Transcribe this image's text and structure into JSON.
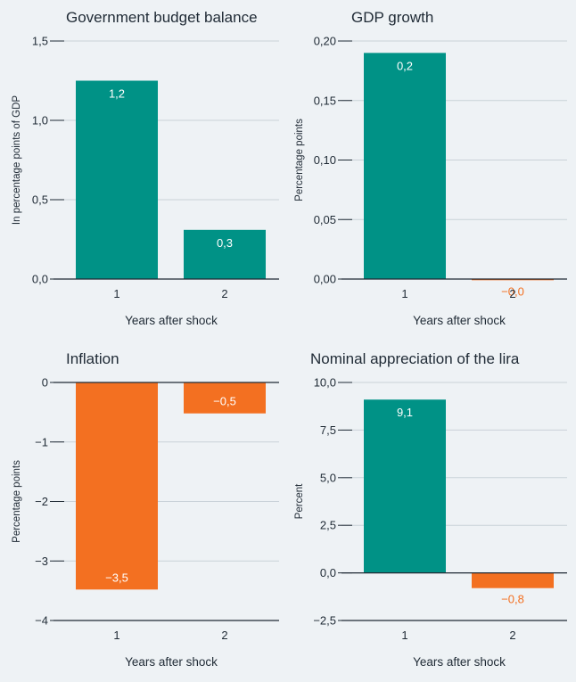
{
  "colors": {
    "positive": "#009286",
    "negative": "#f37021",
    "grid": "#c9d1d8",
    "axis": "#1f2a35",
    "background": "#eef2f5"
  },
  "chart_data": [
    {
      "type": "bar",
      "title": "Government budget balance",
      "ylabel": "In percentage points of GDP",
      "xlabel": "Years after shock",
      "categories": [
        "1",
        "2"
      ],
      "values": [
        1.25,
        0.31
      ],
      "data_labels": [
        "1,2",
        "0,3"
      ],
      "ylim": [
        0,
        1.5
      ],
      "yticks": [
        0,
        0.5,
        1.0,
        1.5
      ],
      "ytick_labels": [
        "0,0",
        "0,5",
        "1,0",
        "1,5"
      ],
      "grid": true
    },
    {
      "type": "bar",
      "title": "GDP growth",
      "ylabel": "Percentage points",
      "xlabel": "Years after shock",
      "categories": [
        "1",
        "2"
      ],
      "values": [
        0.19,
        -0.001
      ],
      "data_labels": [
        "0,2",
        "−0,0"
      ],
      "ylim": [
        0,
        0.2
      ],
      "yticks": [
        0,
        0.05,
        0.1,
        0.15,
        0.2
      ],
      "ytick_labels": [
        "0,00",
        "0,05",
        "0,10",
        "0,15",
        "0,20"
      ],
      "grid": true
    },
    {
      "type": "bar",
      "title": "Inflation",
      "ylabel": "Percentage points",
      "xlabel": "Years after shock",
      "categories": [
        "1",
        "2"
      ],
      "values": [
        -3.48,
        -0.52
      ],
      "data_labels": [
        "−3,5",
        "−0,5"
      ],
      "ylim": [
        -4,
        0
      ],
      "yticks": [
        -4,
        -3,
        -2,
        -1,
        0
      ],
      "ytick_labels": [
        "−4",
        "−3",
        "−2",
        "−1",
        "0"
      ],
      "grid": true
    },
    {
      "type": "bar",
      "title": "Nominal appreciation of the lira",
      "ylabel": "Percent",
      "xlabel": "Years after shock",
      "categories": [
        "1",
        "2"
      ],
      "values": [
        9.1,
        -0.8
      ],
      "data_labels": [
        "9,1",
        "−0,8"
      ],
      "ylim": [
        -2.5,
        10
      ],
      "yticks": [
        -2.5,
        0,
        2.5,
        5,
        7.5,
        10
      ],
      "ytick_labels": [
        "−2,5",
        "0,0",
        "2,5",
        "5,0",
        "7,5",
        "10,0"
      ],
      "grid": true
    }
  ]
}
